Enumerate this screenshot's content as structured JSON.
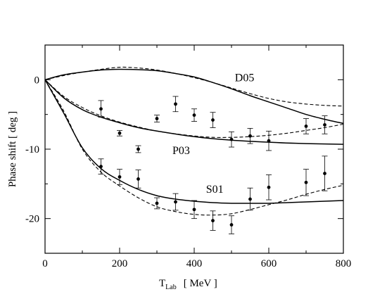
{
  "chart_data": {
    "type": "line",
    "xlabel": "T",
    "xlabel_sub": "Lab",
    "xlabel_unit": "[ MeV ]",
    "ylabel": "Phase shift   [ deg ]",
    "xlim": [
      0,
      800
    ],
    "ylim": [
      -25,
      5
    ],
    "x_ticks": [
      0,
      200,
      400,
      600,
      800
    ],
    "y_ticks": [
      0,
      -10,
      -20
    ],
    "grid": false,
    "curve_labels": [
      {
        "text": "D05",
        "x": 535,
        "y": 0.3
      },
      {
        "text": "P03",
        "x": 365,
        "y": -10.2
      },
      {
        "text": "S01",
        "x": 455,
        "y": -15.8
      }
    ],
    "series": [
      {
        "style": "solid",
        "x": [
          0,
          50,
          100,
          150,
          200,
          250,
          300,
          350,
          400,
          450,
          500,
          550,
          600,
          650,
          700,
          750,
          800
        ],
        "y": [
          0,
          0.7,
          1.1,
          1.4,
          1.5,
          1.45,
          1.3,
          0.9,
          0.4,
          -0.4,
          -1.3,
          -2.3,
          -3.2,
          -4.1,
          -5.0,
          -5.7,
          -6.3
        ]
      },
      {
        "style": "dashed",
        "x": [
          0,
          50,
          100,
          150,
          200,
          250,
          300,
          350,
          400,
          450,
          500,
          550,
          600,
          650,
          700,
          750,
          800
        ],
        "y": [
          0,
          0.6,
          1.1,
          1.5,
          1.8,
          1.7,
          1.4,
          0.9,
          0.3,
          -0.4,
          -1.2,
          -2.0,
          -2.7,
          -3.2,
          -3.5,
          -3.7,
          -3.8
        ]
      },
      {
        "style": "solid",
        "x": [
          0,
          50,
          100,
          150,
          200,
          250,
          300,
          400,
          500,
          600,
          700,
          800
        ],
        "y": [
          0,
          -2.6,
          -4.3,
          -5.4,
          -6.2,
          -6.9,
          -7.4,
          -8.2,
          -8.7,
          -9.0,
          -9.2,
          -9.3
        ]
      },
      {
        "style": "dashed",
        "x": [
          0,
          50,
          100,
          150,
          200,
          250,
          300,
          350,
          400,
          450,
          500,
          550,
          600,
          650,
          700,
          750,
          800
        ],
        "y": [
          0,
          -2.4,
          -4.0,
          -5.2,
          -6.1,
          -6.8,
          -7.4,
          -7.8,
          -8.1,
          -8.3,
          -8.3,
          -8.2,
          -8.0,
          -7.7,
          -7.3,
          -6.9,
          -6.4
        ]
      },
      {
        "style": "solid",
        "x": [
          0,
          50,
          100,
          150,
          200,
          250,
          300,
          350,
          400,
          450,
          500,
          550,
          600,
          650,
          700,
          750,
          800
        ],
        "y": [
          0,
          -4.8,
          -9.8,
          -12.8,
          -14.5,
          -15.8,
          -16.7,
          -17.2,
          -17.5,
          -17.7,
          -17.8,
          -17.8,
          -17.8,
          -17.7,
          -17.6,
          -17.5,
          -17.4
        ]
      },
      {
        "style": "dashed",
        "x": [
          0,
          50,
          100,
          150,
          200,
          250,
          300,
          350,
          400,
          450,
          500,
          550,
          600,
          650,
          700,
          750,
          800
        ],
        "y": [
          0,
          -4.5,
          -10.0,
          -13.3,
          -15.3,
          -17.0,
          -18.3,
          -19.0,
          -19.4,
          -19.5,
          -19.3,
          -18.7,
          -18.0,
          -17.3,
          -16.5,
          -15.8,
          -15.2
        ]
      }
    ],
    "data_points": [
      {
        "x": 150,
        "y": -4.2,
        "err": 1.2
      },
      {
        "x": 200,
        "y": -7.7,
        "err": 0.4
      },
      {
        "x": 250,
        "y": -10.0,
        "err": 0.5
      },
      {
        "x": 300,
        "y": -5.6,
        "err": 0.5
      },
      {
        "x": 350,
        "y": -3.5,
        "err": 1.1
      },
      {
        "x": 400,
        "y": -5.1,
        "err": 0.9
      },
      {
        "x": 450,
        "y": -5.8,
        "err": 1.1
      },
      {
        "x": 500,
        "y": -8.6,
        "err": 1.1
      },
      {
        "x": 550,
        "y": -8.1,
        "err": 1.1
      },
      {
        "x": 600,
        "y": -8.8,
        "err": 1.4
      },
      {
        "x": 700,
        "y": -6.7,
        "err": 1.1
      },
      {
        "x": 750,
        "y": -6.5,
        "err": 1.3
      },
      {
        "x": 150,
        "y": -12.5,
        "err": 1.1
      },
      {
        "x": 200,
        "y": -14.0,
        "err": 1.1
      },
      {
        "x": 250,
        "y": -14.3,
        "err": 1.3
      },
      {
        "x": 300,
        "y": -17.8,
        "err": 0.8
      },
      {
        "x": 350,
        "y": -17.6,
        "err": 1.2
      },
      {
        "x": 400,
        "y": -18.7,
        "err": 1.3
      },
      {
        "x": 450,
        "y": -20.3,
        "err": 1.4
      },
      {
        "x": 500,
        "y": -20.9,
        "err": 1.3
      },
      {
        "x": 550,
        "y": -17.2,
        "err": 1.6
      },
      {
        "x": 600,
        "y": -15.5,
        "err": 1.8
      },
      {
        "x": 700,
        "y": -14.8,
        "err": 1.9
      },
      {
        "x": 750,
        "y": -13.5,
        "err": 2.5
      }
    ]
  }
}
